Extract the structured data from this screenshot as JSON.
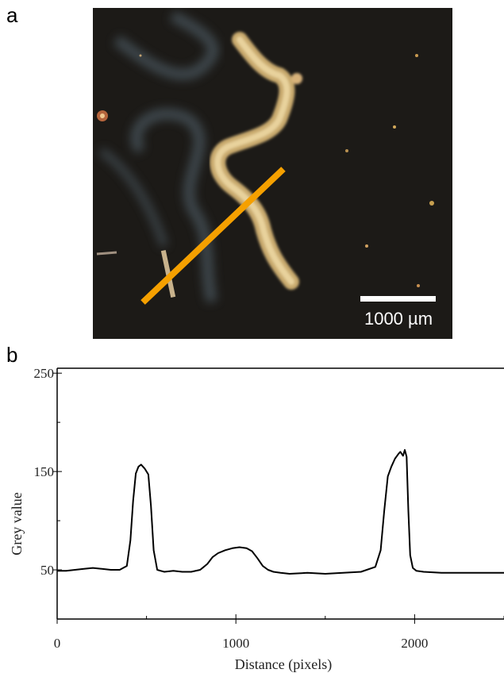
{
  "panel_a": {
    "label": "a",
    "scale_bar_text": "1000 µm",
    "line_color": "#f5a000"
  },
  "panel_b": {
    "label": "b"
  },
  "chart_data": {
    "type": "line",
    "title": "",
    "xlabel": "Distance (pixels)",
    "ylabel": "Grey value",
    "xlim": [
      0,
      2500
    ],
    "ylim": [
      0,
      255
    ],
    "xticks": [
      0,
      1000,
      2000
    ],
    "yticks": [
      50,
      150,
      250
    ],
    "grid": false,
    "series": [
      {
        "color": "#000000",
        "x": [
          0,
          50,
          100,
          150,
          200,
          250,
          300,
          350,
          390,
          410,
          425,
          440,
          455,
          470,
          490,
          510,
          525,
          540,
          560,
          580,
          600,
          650,
          700,
          750,
          800,
          840,
          870,
          900,
          940,
          980,
          1020,
          1060,
          1090,
          1120,
          1150,
          1180,
          1210,
          1250,
          1300,
          1400,
          1500,
          1600,
          1700,
          1780,
          1810,
          1830,
          1850,
          1870,
          1890,
          1910,
          1920,
          1935,
          1945,
          1955,
          1965,
          1975,
          1990,
          2010,
          2050,
          2150,
          2250,
          2350,
          2500
        ],
        "values": [
          49,
          49,
          50,
          51,
          52,
          51,
          50,
          50,
          54,
          80,
          120,
          148,
          155,
          157,
          153,
          147,
          115,
          70,
          50,
          49,
          48,
          49,
          48,
          48,
          50,
          56,
          63,
          67,
          70,
          72,
          73,
          72,
          69,
          62,
          54,
          50,
          48,
          47,
          46,
          47,
          46,
          47,
          48,
          53,
          70,
          110,
          145,
          155,
          163,
          168,
          170,
          166,
          172,
          165,
          110,
          65,
          52,
          49,
          48,
          47,
          47,
          47,
          47
        ]
      }
    ]
  }
}
